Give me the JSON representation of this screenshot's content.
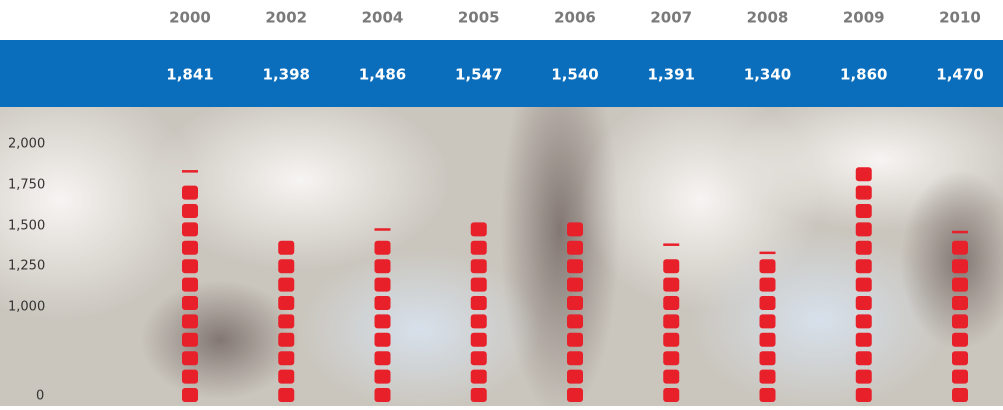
{
  "chart_data": {
    "type": "bar",
    "categories": [
      "2000",
      "2002",
      "2004",
      "2005",
      "2006",
      "2007",
      "2008",
      "2009",
      "2010"
    ],
    "values": [
      1841,
      1398,
      1486,
      1547,
      1540,
      1391,
      1340,
      1860,
      1470
    ],
    "value_labels": [
      "1,841",
      "1,398",
      "1,486",
      "1,547",
      "1,540",
      "1,391",
      "1,340",
      "1,860",
      "1,470"
    ],
    "color": "#e8202a",
    "ylim": [
      0,
      2000
    ],
    "yticks": [
      {
        "value": 0,
        "label": "0"
      },
      {
        "value": 1000,
        "label": "1,000"
      },
      {
        "value": 1250,
        "label": "1,250"
      },
      {
        "value": 1500,
        "label": "1,500"
      },
      {
        "value": 1750,
        "label": "1,750"
      },
      {
        "value": 2000,
        "label": "2,000"
      }
    ]
  }
}
